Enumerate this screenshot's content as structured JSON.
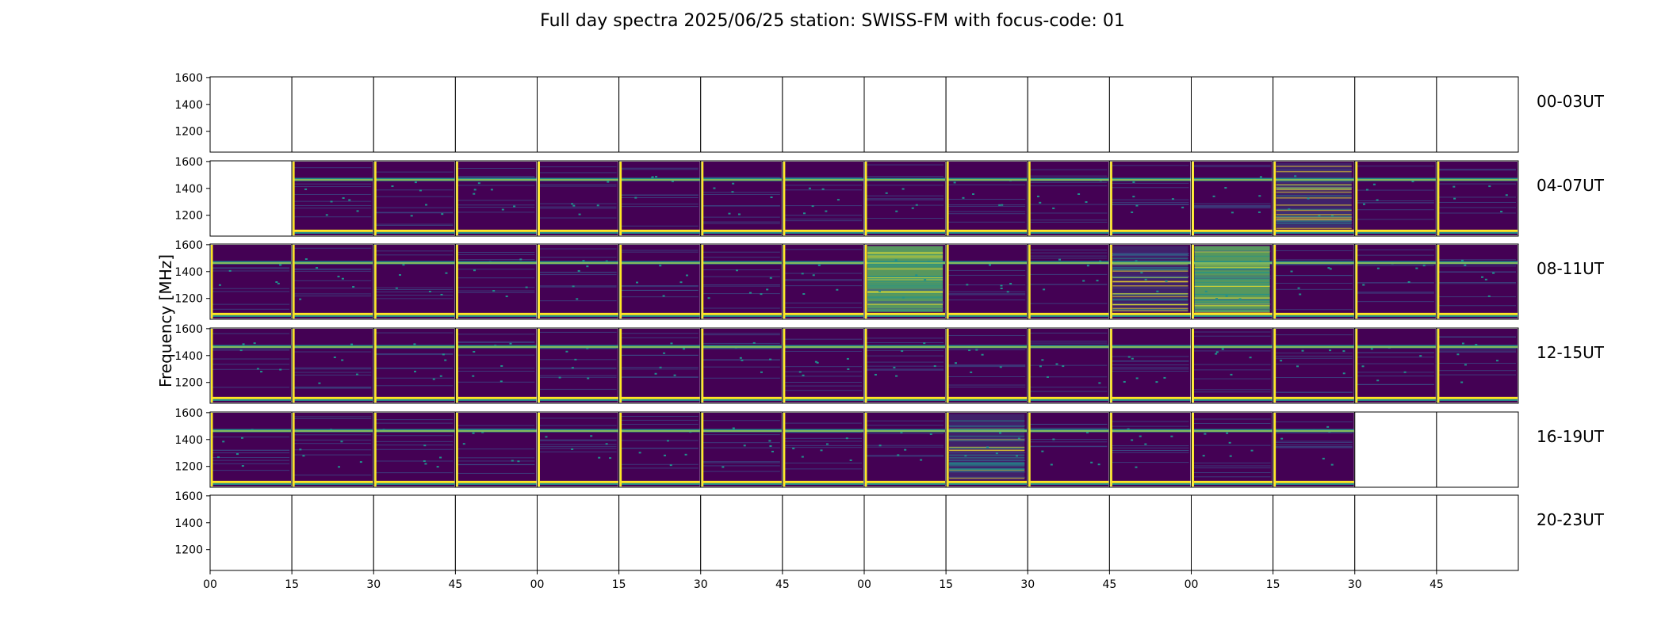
{
  "chart_data": {
    "type": "heatmap",
    "title": "Full day spectra 2025/06/25 station: SWISS-FM with focus-code: 01",
    "ylabel": "Frequency [MHz]",
    "xlabel": "",
    "ylim": [
      1045,
      1605
    ],
    "y_ticks": [
      "1600",
      "1400",
      "1200"
    ],
    "y_tick_values": [
      1600,
      1400,
      1200
    ],
    "x_tick_labels": [
      "00",
      "15",
      "30",
      "45",
      "00",
      "15",
      "30",
      "45",
      "00",
      "15",
      "30",
      "45",
      "00",
      "15",
      "30",
      "45"
    ],
    "row_labels": [
      "00-03UT",
      "04-07UT",
      "08-11UT",
      "12-15UT",
      "16-19UT",
      "20-23UT"
    ],
    "slots_per_row": 16,
    "minutes_per_slot": 15,
    "colormap": "viridis",
    "row_data_slots": [
      [],
      [
        1,
        2,
        3,
        4,
        5,
        6,
        7,
        8,
        9,
        10,
        11,
        12,
        13,
        14,
        15
      ],
      [
        0,
        1,
        2,
        3,
        4,
        5,
        6,
        7,
        8,
        9,
        10,
        11,
        12,
        13,
        14,
        15
      ],
      [
        0,
        1,
        2,
        3,
        4,
        5,
        6,
        7,
        8,
        9,
        10,
        11,
        12,
        13,
        14,
        15
      ],
      [
        0,
        1,
        2,
        3,
        4,
        5,
        6,
        7,
        8,
        9,
        10,
        11,
        12,
        13
      ],
      []
    ],
    "steady_band_mhz": [
      1470,
      1085
    ],
    "burst_activity": [
      {
        "row": "08-11UT",
        "slot": 8,
        "level": "high"
      },
      {
        "row": "08-11UT",
        "slot": 12,
        "level": "high"
      },
      {
        "row": "16-19UT",
        "slot": 9,
        "level": "medium"
      },
      {
        "row": "04-07UT",
        "slot": 13,
        "level": "medium"
      },
      {
        "row": "08-11UT",
        "slot": 11,
        "level": "medium"
      }
    ]
  },
  "colors": {
    "background": "#440154",
    "band_high": "#fde725",
    "band_mid": "#21918c",
    "band_low": "#3b528b",
    "burst": "#5ec962"
  }
}
